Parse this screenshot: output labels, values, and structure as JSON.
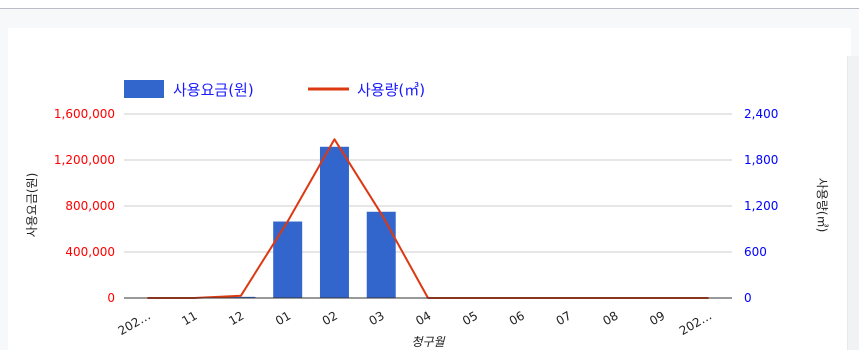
{
  "chart_data": {
    "type": "bar",
    "xlabel": "청구월",
    "ylabel_left": "사용요금(원)",
    "ylabel_right": "사용량(㎥)",
    "categories": [
      "202…",
      "11",
      "12",
      "01",
      "02",
      "03",
      "04",
      "05",
      "06",
      "07",
      "08",
      "09",
      "202…"
    ],
    "left_axis": {
      "ylim": [
        0,
        1600000
      ],
      "ticks": [
        0,
        400000,
        800000,
        1200000,
        1600000
      ],
      "tick_labels": [
        "0",
        "400,000",
        "800,000",
        "1,200,000",
        "1,600,000"
      ],
      "color": "#ff0000"
    },
    "right_axis": {
      "ylim": [
        0,
        2400
      ],
      "ticks": [
        0,
        600,
        1200,
        1800,
        2400
      ],
      "tick_labels": [
        "0",
        "600",
        "1,200",
        "1,800",
        "2,400"
      ],
      "color": "#0000ff"
    },
    "series": [
      {
        "name": "사용요금(원)",
        "type": "bar",
        "axis": "left",
        "color": "#3366cc",
        "values": [
          0,
          0,
          10000,
          665000,
          1315000,
          750000,
          0,
          0,
          0,
          0,
          0,
          0,
          0
        ]
      },
      {
        "name": "사용량(㎥)",
        "type": "line",
        "axis": "right",
        "color": "#dc3912",
        "values": [
          0,
          0,
          30,
          1000,
          2070,
          1100,
          0,
          0,
          0,
          0,
          0,
          0,
          0
        ]
      }
    ],
    "legend_position": "top-left",
    "grid": true
  }
}
